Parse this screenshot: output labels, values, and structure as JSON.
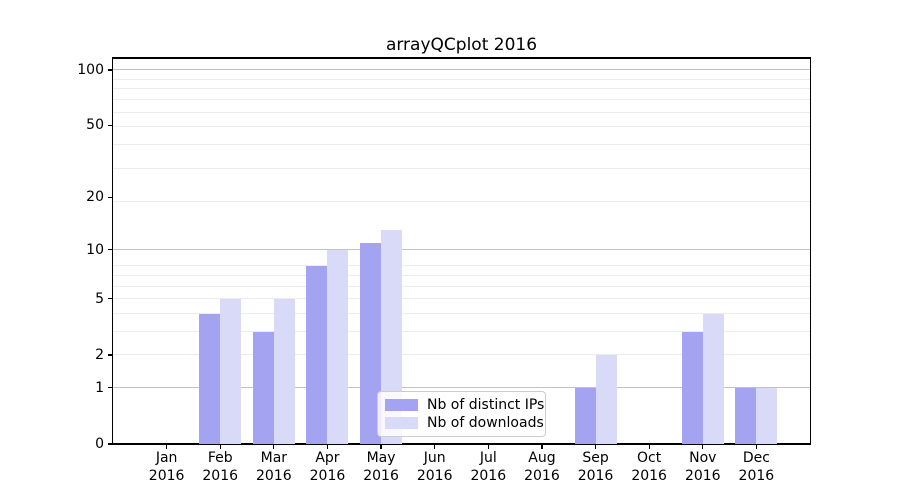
{
  "chart_data": {
    "type": "bar",
    "title": "arrayQCplot 2016",
    "categories": [
      "Jan 2016",
      "Feb 2016",
      "Mar 2016",
      "Apr 2016",
      "May 2016",
      "Jun 2016",
      "Jul 2016",
      "Aug 2016",
      "Sep 2016",
      "Oct 2016",
      "Nov 2016",
      "Dec 2016"
    ],
    "series": [
      {
        "name": "Nb of distinct IPs",
        "color": "#a3a3f2",
        "values": [
          0,
          4,
          3,
          8,
          11,
          0,
          0,
          0,
          1,
          0,
          3,
          1
        ]
      },
      {
        "name": "Nb of downloads",
        "color": "#d9d9f8",
        "values": [
          0,
          5,
          5,
          10,
          13,
          0,
          0,
          0,
          2,
          0,
          4,
          1
        ]
      }
    ],
    "xlabel": "",
    "ylabel": "",
    "yscale": "log1p",
    "ylim": [
      0,
      116
    ],
    "yticks": [
      0,
      1,
      2,
      5,
      10,
      20,
      50,
      100
    ],
    "major_gridlines": [
      1,
      10,
      100
    ],
    "minor_gridlines": [
      2,
      3,
      4,
      5,
      6,
      7,
      8,
      19,
      29,
      39,
      49,
      59,
      69,
      79,
      89
    ],
    "grid": true,
    "legend_position": "lower center",
    "colors": {
      "major_grid": "#c3c3c3",
      "minor_grid": "#ececec",
      "axis": "#000000",
      "background": "#ffffff"
    }
  }
}
